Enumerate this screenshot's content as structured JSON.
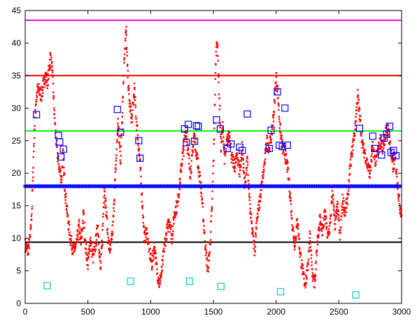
{
  "chart_data": {
    "type": "scatter",
    "title": "",
    "xlabel": "",
    "ylabel": "",
    "xlim": [
      0,
      3000
    ],
    "ylim": [
      0,
      45
    ],
    "grid": false,
    "x_ticks": [
      0,
      500,
      1000,
      1500,
      2000,
      2500,
      3000
    ],
    "y_ticks": [
      0,
      5,
      10,
      15,
      20,
      25,
      30,
      35,
      40,
      45
    ],
    "hlines": [
      {
        "y": 43.5,
        "color": "#ff00ff"
      },
      {
        "y": 35.0,
        "color": "#ff0000"
      },
      {
        "y": 26.5,
        "color": "#00ff00"
      },
      {
        "y": 9.4,
        "color": "#000000"
      }
    ],
    "blue_star_level": 18.0,
    "signal_color": "#ff0000",
    "signal_envelope": [
      [
        0,
        9
      ],
      [
        20,
        8
      ],
      [
        40,
        10
      ],
      [
        55,
        15
      ],
      [
        70,
        25
      ],
      [
        85,
        31
      ],
      [
        100,
        33
      ],
      [
        130,
        32
      ],
      [
        160,
        35
      ],
      [
        180,
        34
      ],
      [
        200,
        38
      ],
      [
        215,
        36
      ],
      [
        230,
        30
      ],
      [
        250,
        24
      ],
      [
        270,
        21
      ],
      [
        290,
        19
      ],
      [
        300,
        23
      ],
      [
        320,
        17
      ],
      [
        340,
        13
      ],
      [
        360,
        10
      ],
      [
        385,
        8
      ],
      [
        410,
        9
      ],
      [
        430,
        12
      ],
      [
        445,
        9
      ],
      [
        465,
        14
      ],
      [
        480,
        9
      ],
      [
        500,
        6
      ],
      [
        520,
        10
      ],
      [
        540,
        7
      ],
      [
        560,
        9
      ],
      [
        580,
        12
      ],
      [
        600,
        5
      ],
      [
        615,
        10
      ],
      [
        630,
        18
      ],
      [
        650,
        13
      ],
      [
        665,
        9
      ],
      [
        680,
        8
      ],
      [
        700,
        12
      ],
      [
        720,
        20
      ],
      [
        740,
        28
      ],
      [
        760,
        22
      ],
      [
        775,
        30
      ],
      [
        790,
        38
      ],
      [
        805,
        42
      ],
      [
        815,
        36
      ],
      [
        830,
        31
      ],
      [
        850,
        28
      ],
      [
        870,
        33
      ],
      [
        890,
        27
      ],
      [
        905,
        24
      ],
      [
        920,
        20
      ],
      [
        935,
        15
      ],
      [
        950,
        10
      ],
      [
        970,
        11
      ],
      [
        990,
        8
      ],
      [
        1010,
        6
      ],
      [
        1030,
        9
      ],
      [
        1050,
        5
      ],
      [
        1070,
        3
      ],
      [
        1090,
        5
      ],
      [
        1110,
        9
      ],
      [
        1130,
        11
      ],
      [
        1150,
        13
      ],
      [
        1170,
        10
      ],
      [
        1190,
        14
      ],
      [
        1210,
        15
      ],
      [
        1230,
        18
      ],
      [
        1250,
        22
      ],
      [
        1265,
        24
      ],
      [
        1280,
        27
      ],
      [
        1300,
        23
      ],
      [
        1315,
        20
      ],
      [
        1330,
        22
      ],
      [
        1345,
        26
      ],
      [
        1360,
        24
      ],
      [
        1380,
        21
      ],
      [
        1400,
        18
      ],
      [
        1420,
        13
      ],
      [
        1440,
        8
      ],
      [
        1455,
        5
      ],
      [
        1470,
        8
      ],
      [
        1490,
        15
      ],
      [
        1505,
        25
      ],
      [
        1520,
        38
      ],
      [
        1530,
        41
      ],
      [
        1545,
        33
      ],
      [
        1560,
        24
      ],
      [
        1575,
        27
      ],
      [
        1590,
        22
      ],
      [
        1610,
        25
      ],
      [
        1630,
        26
      ],
      [
        1650,
        22
      ],
      [
        1670,
        21
      ],
      [
        1690,
        23
      ],
      [
        1710,
        20
      ],
      [
        1730,
        24
      ],
      [
        1750,
        18
      ],
      [
        1770,
        22
      ],
      [
        1790,
        15
      ],
      [
        1810,
        11
      ],
      [
        1830,
        8
      ],
      [
        1845,
        13
      ],
      [
        1865,
        15
      ],
      [
        1885,
        18
      ],
      [
        1905,
        21
      ],
      [
        1925,
        25
      ],
      [
        1945,
        24
      ],
      [
        1965,
        26
      ],
      [
        1985,
        30
      ],
      [
        2000,
        35
      ],
      [
        2015,
        32
      ],
      [
        2030,
        27
      ],
      [
        2050,
        24
      ],
      [
        2070,
        23
      ],
      [
        2090,
        21
      ],
      [
        2110,
        17
      ],
      [
        2130,
        12
      ],
      [
        2150,
        9
      ],
      [
        2170,
        13
      ],
      [
        2190,
        8
      ],
      [
        2210,
        5
      ],
      [
        2230,
        3
      ],
      [
        2250,
        5
      ],
      [
        2270,
        11
      ],
      [
        2290,
        4
      ],
      [
        2310,
        3
      ],
      [
        2330,
        10
      ],
      [
        2350,
        13
      ],
      [
        2370,
        11
      ],
      [
        2390,
        14
      ],
      [
        2410,
        10
      ],
      [
        2430,
        12
      ],
      [
        2450,
        17
      ],
      [
        2470,
        12
      ],
      [
        2490,
        15
      ],
      [
        2510,
        10
      ],
      [
        2530,
        16
      ],
      [
        2550,
        14
      ],
      [
        2570,
        16
      ],
      [
        2590,
        21
      ],
      [
        2610,
        24
      ],
      [
        2630,
        27
      ],
      [
        2650,
        32
      ],
      [
        2670,
        28
      ],
      [
        2690,
        24
      ],
      [
        2710,
        23
      ],
      [
        2730,
        21
      ],
      [
        2750,
        20
      ],
      [
        2770,
        24
      ],
      [
        2790,
        22
      ],
      [
        2810,
        23
      ],
      [
        2830,
        25
      ],
      [
        2850,
        24
      ],
      [
        2870,
        26
      ],
      [
        2890,
        27
      ],
      [
        2910,
        24
      ],
      [
        2930,
        21
      ],
      [
        2950,
        22
      ],
      [
        2970,
        18
      ],
      [
        2985,
        15
      ],
      [
        3000,
        14
      ]
    ],
    "blue_markers": [
      [
        90,
        29.0
      ],
      [
        265,
        25.8
      ],
      [
        275,
        24.8
      ],
      [
        285,
        22.5
      ],
      [
        305,
        23.7
      ],
      [
        735,
        29.8
      ],
      [
        760,
        26.3
      ],
      [
        905,
        25.0
      ],
      [
        915,
        22.3
      ],
      [
        1270,
        26.8
      ],
      [
        1285,
        24.7
      ],
      [
        1300,
        27.5
      ],
      [
        1350,
        24.9
      ],
      [
        1365,
        27.3
      ],
      [
        1380,
        27.2
      ],
      [
        1525,
        28.2
      ],
      [
        1555,
        26.8
      ],
      [
        1610,
        23.8
      ],
      [
        1640,
        24.5
      ],
      [
        1710,
        24.0
      ],
      [
        1730,
        23.5
      ],
      [
        1770,
        29.1
      ],
      [
        1945,
        23.8
      ],
      [
        1960,
        26.6
      ],
      [
        2010,
        32.5
      ],
      [
        2025,
        24.3
      ],
      [
        2050,
        24.1
      ],
      [
        2070,
        30.0
      ],
      [
        2090,
        24.3
      ],
      [
        2665,
        26.9
      ],
      [
        2770,
        25.7
      ],
      [
        2785,
        23.8
      ],
      [
        2840,
        22.8
      ],
      [
        2860,
        25.4
      ],
      [
        2880,
        26.0
      ],
      [
        2905,
        27.2
      ],
      [
        2915,
        23.2
      ],
      [
        2935,
        23.5
      ],
      [
        2955,
        22.7
      ]
    ],
    "cyan_markers": [
      [
        175,
        2.7
      ],
      [
        840,
        3.4
      ],
      [
        1310,
        3.4
      ],
      [
        1560,
        2.6
      ],
      [
        2035,
        1.8
      ],
      [
        2635,
        1.3
      ]
    ]
  }
}
